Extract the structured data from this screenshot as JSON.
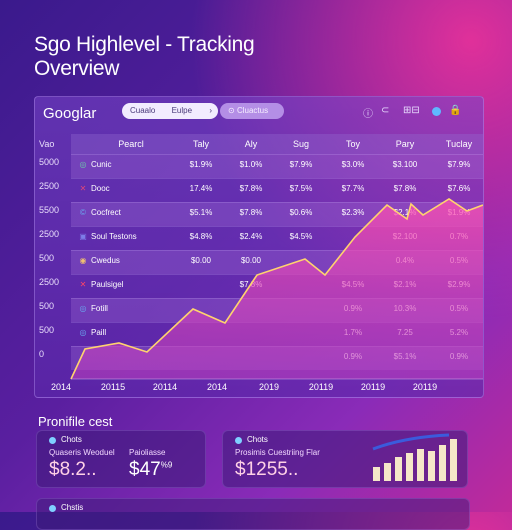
{
  "page": {
    "title": "Sgo Highlevel - Tracking Overview",
    "section_title": "Pronifile cest"
  },
  "header": {
    "brand": "Googlar",
    "search_text": "Cuaalo",
    "search_value": "Eulpe",
    "search_chevron": "›",
    "filter_label": "Cluactus",
    "tools": [
      "ⓘ",
      "⊂",
      "⊞⊟",
      "🔒"
    ]
  },
  "table": {
    "columns": [
      "Pearcl",
      "Taly",
      "Aly",
      "Sug",
      "Toy",
      "Pary",
      "Tuclay"
    ],
    "y_axis_labels": [
      "5000",
      "2500",
      "5500",
      "2500",
      "500",
      "2500",
      "500",
      "500",
      "0"
    ],
    "x_axis_labels": [
      "2014",
      "20115",
      "20114",
      "2014",
      "2019",
      "20119",
      "20119",
      "20119"
    ],
    "rows": [
      {
        "icon": "◎",
        "icon_color": "#6cc9a8",
        "name": "Cunic",
        "cells": [
          "$1.9%",
          "$1.0%",
          "$7.9%",
          "$3.0%",
          "$3.100",
          "$7.9%"
        ]
      },
      {
        "icon": "✕",
        "icon_color": "#e0457a",
        "name": "Dooc",
        "cells": [
          "17.4%",
          "$7.8%",
          "$7.5%",
          "$7.7%",
          "$7.8%",
          "$7.6%"
        ]
      },
      {
        "icon": "©",
        "icon_color": "#6aa9f0",
        "name": "Cocfrect",
        "cells": [
          "$5.1%",
          "$7.8%",
          "$0.6%",
          "$2.3%",
          "$2.1%",
          "$1.9%"
        ]
      },
      {
        "icon": "▣",
        "icon_color": "#7d7de8",
        "name": "Soul Testons",
        "cells": [
          "$4.8%",
          "$2.4%",
          "$4.5%",
          "",
          "$2.100",
          "0.7%"
        ]
      },
      {
        "icon": "◉",
        "icon_color": "#f0c070",
        "name": "Cwedus",
        "cells": [
          "$0.00",
          "$0.00",
          "",
          "",
          "0.4%",
          "0.5%"
        ]
      },
      {
        "icon": "✕",
        "icon_color": "#ff4466",
        "name": "Paulsigel",
        "cells": [
          "",
          "$7.8%",
          "",
          "$4.5%",
          "$2.1%",
          "$2.9%"
        ]
      },
      {
        "icon": "◎",
        "icon_color": "#6aa9f0",
        "name": "Fotill",
        "cells": [
          "",
          "",
          "",
          "0.9%",
          "10.3%",
          "0.5%"
        ]
      },
      {
        "icon": "◎",
        "icon_color": "#6aa9f0",
        "name": "Paill",
        "cells": [
          "",
          "",
          "",
          "1.7%",
          "7.25",
          "5.2%"
        ]
      },
      {
        "icon": "",
        "icon_color": "#6aa9f0",
        "name": "",
        "cells": [
          "",
          "",
          "",
          "0.9%",
          "$5.1%",
          "0.9%"
        ]
      }
    ]
  },
  "cards": [
    {
      "label": "Chots",
      "sub1": "Quaseris Weoduel",
      "sub2": "Paioliasse",
      "value1": "$8.2..",
      "value2": "$47",
      "value2_sup": "%9"
    },
    {
      "label": "Chots",
      "sub1": "Prosimis Cuestriing Flar",
      "value1": "$1255.."
    }
  ],
  "bottom_card": {
    "label": "Chstis"
  },
  "colors": {
    "accent": "#ff4fb0",
    "line": "#ffd36e",
    "bar": "#f5e6c8",
    "bar_dark": "#3b5bdc"
  }
}
